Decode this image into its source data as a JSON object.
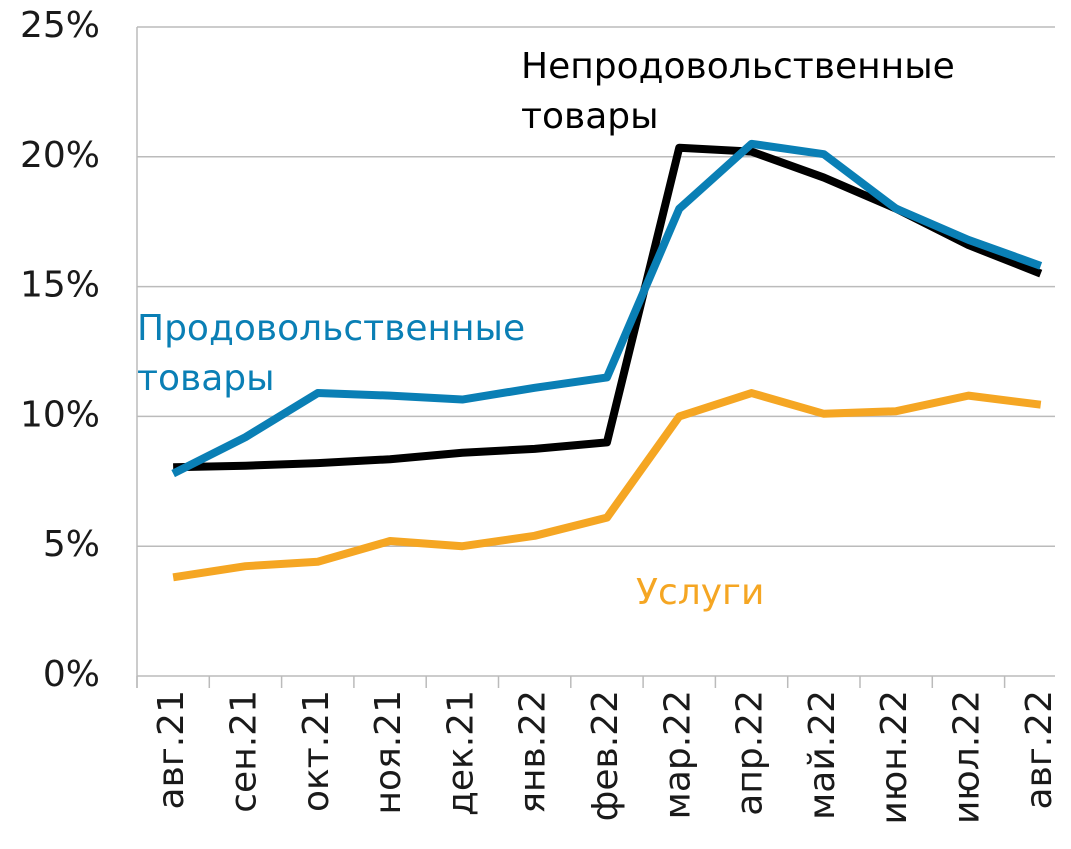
{
  "chart_data": {
    "type": "line",
    "categories": [
      "авг.21",
      "сен.21",
      "окт.21",
      "ноя.21",
      "дек.21",
      "янв.22",
      "фев.22",
      "мар.22",
      "апр.22",
      "май.22",
      "июн.22",
      "июл.22",
      "авг.22"
    ],
    "series": [
      {
        "name": "Непродовольственные товары",
        "color": "#000000",
        "values": [
          8.04,
          8.1,
          8.2,
          8.35,
          8.6,
          8.75,
          9.0,
          20.35,
          20.2,
          19.2,
          18.0,
          16.6,
          15.5
        ]
      },
      {
        "name": "Продовольственные товары",
        "color": "#0a7fb5",
        "values": [
          7.8,
          9.2,
          10.9,
          10.8,
          10.65,
          11.1,
          11.5,
          18.0,
          20.5,
          20.1,
          18.0,
          16.8,
          15.8
        ]
      },
      {
        "name": "Услуги",
        "color": "#f5a623",
        "values": [
          3.8,
          4.23,
          4.4,
          5.2,
          5.0,
          5.4,
          6.1,
          10.0,
          10.9,
          10.1,
          10.2,
          10.8,
          10.45
        ]
      }
    ],
    "ylim": [
      0,
      25
    ],
    "yticks": [
      {
        "value": 0,
        "label": "0%"
      },
      {
        "value": 5,
        "label": "5%"
      },
      {
        "value": 10,
        "label": "10%"
      },
      {
        "value": 15,
        "label": "15%"
      },
      {
        "value": 20,
        "label": "20%"
      },
      {
        "value": 25,
        "label": "25%"
      }
    ],
    "grid": true
  }
}
